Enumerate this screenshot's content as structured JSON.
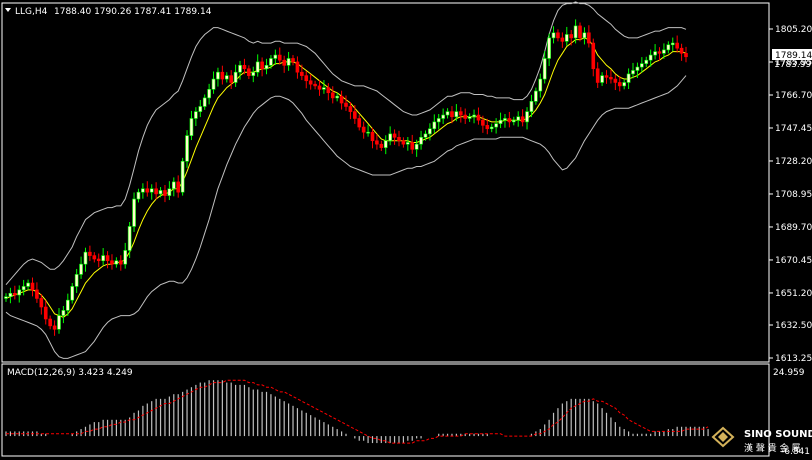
{
  "main": {
    "symbol_label": "LLG,H4",
    "ohlc": "1788.40 1790.26 1787.41 1789.14",
    "price_tag": "1789.14",
    "price_tag_lower": "1783.99"
  },
  "macd": {
    "label": "MACD(12,26,9) 3.423 4.249",
    "axis_top": "24.959",
    "axis_bottom": "-6.841"
  },
  "watermark": {
    "name": "SINO SOUND",
    "chars": "漢 聲 貴 金 屬"
  },
  "colors": {
    "background": "#000000",
    "bull": "#00ff00",
    "bull_body": "#ffffcc",
    "bear": "#ff0000",
    "bollinger": "#c0c0c0",
    "ma": "#ffff00",
    "macd_hist": "#c0c0c0",
    "macd_signal": "#ff0000"
  },
  "chart_data": {
    "type": "candlestick",
    "y_ticks": [
      1805.2,
      1785.95,
      1766.7,
      1747.45,
      1728.2,
      1708.95,
      1689.7,
      1670.45,
      1651.2,
      1632.5,
      1613.25
    ],
    "ylim": [
      1613.25,
      1819
    ],
    "macd_ylim": [
      -6.841,
      24.959
    ],
    "series": [
      {
        "name": "price",
        "values": [
          1649,
          1651,
          1650,
          1653,
          1655,
          1657,
          1653,
          1648,
          1643,
          1636,
          1632,
          1630,
          1638,
          1641,
          1647,
          1655,
          1662,
          1668,
          1675,
          1673,
          1671,
          1670,
          1673,
          1670,
          1668,
          1670,
          1668,
          1676,
          1690,
          1706,
          1710,
          1712,
          1710,
          1712,
          1709,
          1711,
          1708,
          1712,
          1716,
          1710,
          1728,
          1743,
          1753,
          1757,
          1760,
          1765,
          1770,
          1776,
          1780,
          1776,
          1778,
          1774,
          1780,
          1784,
          1782,
          1778,
          1780,
          1786,
          1782,
          1784,
          1788,
          1790,
          1787,
          1784,
          1788,
          1786,
          1780,
          1778,
          1775,
          1773,
          1772,
          1770,
          1771,
          1768,
          1765,
          1766,
          1762,
          1760,
          1757,
          1753,
          1748,
          1745,
          1745,
          1740,
          1738,
          1736,
          1740,
          1744,
          1742,
          1740,
          1738,
          1739,
          1735,
          1738,
          1742,
          1744,
          1747,
          1751,
          1753,
          1755,
          1757,
          1754,
          1757,
          1755,
          1753,
          1754,
          1755,
          1752,
          1749,
          1747,
          1748,
          1750,
          1752,
          1753,
          1751,
          1752,
          1754,
          1751,
          1757,
          1763,
          1769,
          1776,
          1788,
          1800,
          1803,
          1800,
          1798,
          1802,
          1800,
          1807,
          1800,
          1803,
          1797,
          1782,
          1774,
          1778,
          1777,
          1776,
          1774,
          1772,
          1774,
          1779,
          1781,
          1783,
          1785,
          1787,
          1790,
          1792,
          1791,
          1793,
          1796,
          1797,
          1794,
          1791,
          1789
        ]
      },
      {
        "name": "ma",
        "values": [
          1648,
          1649,
          1650,
          1651,
          1652,
          1653,
          1653,
          1652,
          1650,
          1647,
          1643,
          1639,
          1638,
          1637,
          1639,
          1642,
          1647,
          1652,
          1657,
          1660,
          1663,
          1665,
          1667,
          1668,
          1668,
          1669,
          1669,
          1671,
          1675,
          1681,
          1688,
          1694,
          1699,
          1703,
          1706,
          1708,
          1709,
          1710,
          1712,
          1712,
          1716,
          1722,
          1729,
          1736,
          1742,
          1748,
          1754,
          1760,
          1765,
          1768,
          1771,
          1773,
          1775,
          1778,
          1780,
          1780,
          1780,
          1781,
          1782,
          1782,
          1783,
          1785,
          1785,
          1786,
          1786,
          1786,
          1785,
          1783,
          1781,
          1779,
          1777,
          1775,
          1773,
          1771,
          1769,
          1768,
          1766,
          1764,
          1762,
          1759,
          1756,
          1753,
          1750,
          1747,
          1744,
          1741,
          1740,
          1740,
          1740,
          1740,
          1740,
          1740,
          1739,
          1739,
          1740,
          1741,
          1742,
          1744,
          1746,
          1748,
          1750,
          1751,
          1753,
          1754,
          1754,
          1754,
          1754,
          1754,
          1753,
          1752,
          1751,
          1751,
          1751,
          1752,
          1752,
          1752,
          1752,
          1752,
          1753,
          1755,
          1758,
          1762,
          1767,
          1774,
          1781,
          1787,
          1791,
          1795,
          1797,
          1799,
          1799,
          1800,
          1799,
          1795,
          1790,
          1787,
          1784,
          1782,
          1779,
          1777,
          1776,
          1776,
          1777,
          1778,
          1780,
          1782,
          1784,
          1786,
          1787,
          1789,
          1790,
          1792,
          1792,
          1792,
          1791
        ]
      },
      {
        "name": "bb_upper",
        "values": [
          1656,
          1659,
          1662,
          1665,
          1668,
          1670,
          1671,
          1670,
          1669,
          1667,
          1665,
          1665,
          1667,
          1670,
          1674,
          1678,
          1684,
          1689,
          1694,
          1696,
          1698,
          1699,
          1700,
          1701,
          1701,
          1702,
          1702,
          1706,
          1714,
          1724,
          1734,
          1742,
          1749,
          1754,
          1758,
          1760,
          1762,
          1764,
          1767,
          1769,
          1775,
          1782,
          1789,
          1795,
          1799,
          1802,
          1804,
          1806,
          1806,
          1805,
          1804,
          1803,
          1802,
          1801,
          1800,
          1798,
          1797,
          1798,
          1797,
          1797,
          1797,
          1798,
          1798,
          1797,
          1797,
          1797,
          1797,
          1796,
          1795,
          1793,
          1791,
          1788,
          1785,
          1782,
          1779,
          1777,
          1775,
          1774,
          1773,
          1772,
          1772,
          1772,
          1771,
          1770,
          1769,
          1767,
          1765,
          1763,
          1761,
          1759,
          1757,
          1756,
          1755,
          1755,
          1756,
          1757,
          1758,
          1760,
          1762,
          1764,
          1766,
          1766,
          1767,
          1768,
          1768,
          1768,
          1767,
          1767,
          1767,
          1766,
          1766,
          1765,
          1765,
          1765,
          1765,
          1764,
          1764,
          1764,
          1766,
          1770,
          1776,
          1783,
          1792,
          1802,
          1810,
          1816,
          1819,
          1820,
          1820,
          1821,
          1820,
          1820,
          1819,
          1817,
          1814,
          1812,
          1810,
          1808,
          1805,
          1803,
          1801,
          1800,
          1800,
          1800,
          1801,
          1802,
          1803,
          1804,
          1804,
          1805,
          1806,
          1806,
          1806,
          1806,
          1805
        ]
      },
      {
        "name": "bb_lower",
        "values": [
          1640,
          1638,
          1637,
          1636,
          1635,
          1634,
          1633,
          1632,
          1630,
          1627,
          1622,
          1617,
          1614,
          1613,
          1613,
          1614,
          1615,
          1616,
          1617,
          1620,
          1623,
          1627,
          1631,
          1634,
          1636,
          1637,
          1638,
          1638,
          1638,
          1639,
          1641,
          1645,
          1649,
          1652,
          1654,
          1656,
          1657,
          1658,
          1658,
          1657,
          1657,
          1660,
          1665,
          1671,
          1678,
          1686,
          1694,
          1703,
          1712,
          1719,
          1726,
          1732,
          1738,
          1743,
          1748,
          1752,
          1756,
          1759,
          1761,
          1763,
          1765,
          1766,
          1766,
          1765,
          1764,
          1762,
          1759,
          1756,
          1752,
          1749,
          1746,
          1743,
          1740,
          1737,
          1734,
          1731,
          1729,
          1727,
          1725,
          1724,
          1723,
          1722,
          1721,
          1720,
          1720,
          1720,
          1720,
          1720,
          1721,
          1722,
          1723,
          1724,
          1724,
          1725,
          1725,
          1726,
          1727,
          1728,
          1730,
          1732,
          1734,
          1735,
          1737,
          1738,
          1739,
          1740,
          1741,
          1741,
          1741,
          1741,
          1741,
          1741,
          1742,
          1742,
          1742,
          1742,
          1742,
          1742,
          1741,
          1740,
          1739,
          1738,
          1736,
          1733,
          1729,
          1726,
          1723,
          1724,
          1727,
          1730,
          1735,
          1740,
          1744,
          1748,
          1752,
          1755,
          1757,
          1758,
          1759,
          1759,
          1759,
          1759,
          1760,
          1761,
          1762,
          1763,
          1764,
          1765,
          1766,
          1767,
          1768,
          1770,
          1772,
          1775,
          1778
        ]
      },
      {
        "name": "macd_hist",
        "values": [
          2,
          2,
          2,
          2,
          2,
          2,
          2,
          2,
          1,
          1,
          0,
          0,
          0,
          0,
          0,
          1,
          2,
          3,
          4,
          5,
          6,
          6,
          7,
          7,
          7,
          7,
          7,
          7,
          8,
          10,
          11,
          13,
          14,
          15,
          16,
          16,
          16,
          17,
          18,
          18,
          19,
          20,
          21,
          22,
          23,
          23,
          24,
          24,
          24,
          24,
          23,
          23,
          22,
          22,
          22,
          21,
          20,
          20,
          19,
          19,
          18,
          17,
          16,
          15,
          14,
          13,
          12,
          11,
          10,
          9,
          8,
          7,
          6,
          5,
          4,
          3,
          2,
          1,
          0,
          -1,
          -2,
          -2,
          -3,
          -3,
          -3,
          -3,
          -3,
          -3,
          -3,
          -3,
          -3,
          -2,
          -2,
          -1,
          -1,
          0,
          0,
          0,
          1,
          1,
          1,
          1,
          1,
          1,
          1,
          1,
          1,
          1,
          1,
          1,
          0,
          0,
          0,
          0,
          0,
          0,
          0,
          0,
          0,
          1,
          2,
          3,
          5,
          7,
          10,
          12,
          14,
          15,
          16,
          16,
          16,
          16,
          16,
          15,
          14,
          12,
          10,
          8,
          6,
          4,
          3,
          2,
          1,
          1,
          1,
          1,
          1,
          2,
          2,
          2,
          3,
          3,
          4,
          4,
          4,
          4,
          4,
          4,
          4,
          3
        ]
      },
      {
        "name": "macd_signal",
        "values": [
          1,
          1,
          1,
          1,
          1,
          1,
          1,
          1,
          1,
          1,
          1,
          1,
          1,
          1,
          1,
          1,
          1,
          1,
          2,
          2,
          3,
          3,
          4,
          4,
          5,
          5,
          6,
          6,
          7,
          7,
          8,
          9,
          10,
          11,
          12,
          13,
          14,
          14,
          15,
          16,
          17,
          18,
          19,
          20,
          21,
          21,
          22,
          23,
          23,
          23,
          24,
          24,
          24,
          24,
          24,
          23,
          23,
          22,
          22,
          21,
          21,
          20,
          19,
          19,
          18,
          17,
          16,
          15,
          14,
          13,
          12,
          11,
          10,
          9,
          8,
          7,
          6,
          5,
          4,
          3,
          2,
          1,
          0,
          -1,
          -1,
          -2,
          -2,
          -3,
          -3,
          -3,
          -3,
          -3,
          -3,
          -2,
          -2,
          -2,
          -1,
          -1,
          0,
          0,
          0,
          0,
          0,
          0,
          1,
          1,
          1,
          1,
          1,
          1,
          1,
          1,
          1,
          0,
          0,
          0,
          0,
          0,
          0,
          0,
          1,
          1,
          2,
          3,
          5,
          6,
          8,
          10,
          12,
          13,
          14,
          15,
          15,
          16,
          15,
          15,
          14,
          13,
          12,
          10,
          9,
          7,
          6,
          5,
          4,
          3,
          2,
          2,
          2,
          2,
          2,
          2,
          2,
          2,
          3,
          3,
          3,
          3,
          3,
          4
        ]
      }
    ]
  }
}
